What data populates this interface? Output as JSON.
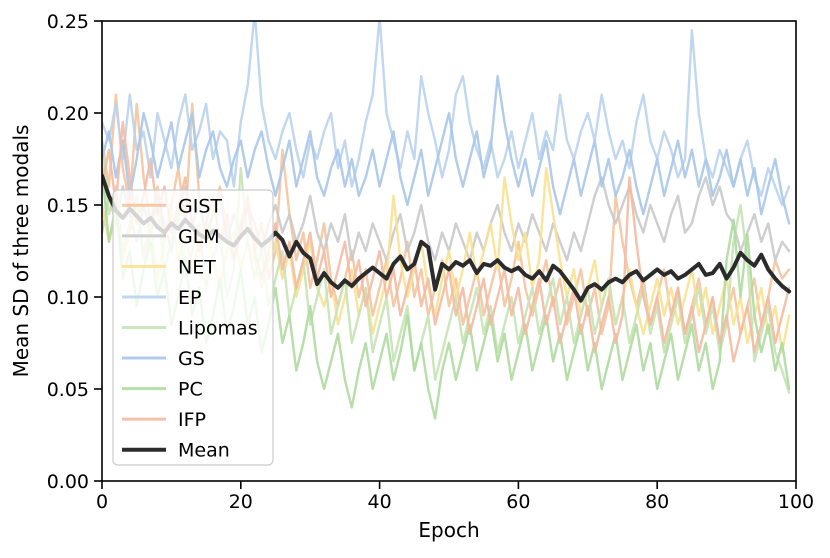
{
  "chart_data": {
    "type": "line",
    "title": "",
    "xlabel": "Epoch",
    "ylabel": "Mean SD of three modals",
    "xlim": [
      0,
      100
    ],
    "ylim": [
      0,
      0.25
    ],
    "xticks": [
      0,
      20,
      40,
      60,
      80,
      100
    ],
    "yticks": [
      0.0,
      0.05,
      0.1,
      0.15,
      0.2,
      0.25
    ],
    "grid": false,
    "legend_position": "center left",
    "axes_color": "#000000",
    "legend_border_color": "#cccccc",
    "x_start": 0,
    "x_step": 1,
    "n_points": 100,
    "series": [
      {
        "name": "GIST",
        "color": "#f6c39c",
        "opacity": 0.9,
        "line_width": 2.4,
        "values": [
          0.185,
          0.16,
          0.21,
          0.17,
          0.15,
          0.205,
          0.165,
          0.14,
          0.16,
          0.13,
          0.15,
          0.17,
          0.14,
          0.205,
          0.155,
          0.13,
          0.145,
          0.16,
          0.135,
          0.12,
          0.14,
          0.155,
          0.125,
          0.14,
          0.11,
          0.125,
          0.18,
          0.145,
          0.12,
          0.135,
          0.105,
          0.12,
          0.14,
          0.11,
          0.095,
          0.11,
          0.125,
          0.1,
          0.115,
          0.09,
          0.105,
          0.12,
          0.095,
          0.11,
          0.13,
          0.1,
          0.115,
          0.09,
          0.105,
          0.12,
          0.095,
          0.11,
          0.085,
          0.1,
          0.115,
          0.09,
          0.105,
          0.12,
          0.095,
          0.11,
          0.13,
          0.105,
          0.09,
          0.105,
          0.12,
          0.095,
          0.11,
          0.085,
          0.1,
          0.115,
          0.09,
          0.105,
          0.08,
          0.095,
          0.155,
          0.13,
          0.11,
          0.095,
          0.11,
          0.085,
          0.1,
          0.115,
          0.09,
          0.105,
          0.08,
          0.095,
          0.11,
          0.085,
          0.1,
          0.075,
          0.09,
          0.105,
          0.08,
          0.095,
          0.11,
          0.085,
          0.1,
          0.12,
          0.11,
          0.115
        ]
      },
      {
        "name": "GLM",
        "color": "#c9c9c9",
        "opacity": 0.9,
        "line_width": 2.4,
        "values": [
          0.135,
          0.155,
          0.14,
          0.16,
          0.145,
          0.13,
          0.15,
          0.135,
          0.155,
          0.14,
          0.125,
          0.145,
          0.16,
          0.14,
          0.15,
          0.135,
          0.145,
          0.155,
          0.13,
          0.145,
          0.135,
          0.15,
          0.14,
          0.125,
          0.14,
          0.15,
          0.135,
          0.145,
          0.13,
          0.14,
          0.155,
          0.135,
          0.125,
          0.14,
          0.13,
          0.145,
          0.12,
          0.135,
          0.125,
          0.14,
          0.13,
          0.12,
          0.135,
          0.145,
          0.125,
          0.135,
          0.15,
          0.13,
          0.12,
          0.135,
          0.125,
          0.14,
          0.13,
          0.12,
          0.135,
          0.125,
          0.14,
          0.15,
          0.135,
          0.125,
          0.14,
          0.13,
          0.145,
          0.135,
          0.125,
          0.14,
          0.13,
          0.12,
          0.135,
          0.125,
          0.14,
          0.155,
          0.165,
          0.15,
          0.14,
          0.15,
          0.16,
          0.145,
          0.135,
          0.15,
          0.14,
          0.13,
          0.145,
          0.155,
          0.135,
          0.14,
          0.155,
          0.165,
          0.15,
          0.16,
          0.145,
          0.14,
          0.125,
          0.135,
          0.145,
          0.13,
          0.14,
          0.12,
          0.13,
          0.125
        ]
      },
      {
        "name": "NET",
        "color": "#fae191",
        "opacity": 0.9,
        "line_width": 2.4,
        "values": [
          0.15,
          0.13,
          0.145,
          0.12,
          0.135,
          0.15,
          0.125,
          0.14,
          0.11,
          0.13,
          0.145,
          0.12,
          0.135,
          0.115,
          0.13,
          0.14,
          0.12,
          0.105,
          0.125,
          0.135,
          0.115,
          0.13,
          0.12,
          0.105,
          0.12,
          0.13,
          0.11,
          0.125,
          0.1,
          0.115,
          0.13,
          0.105,
          0.095,
          0.11,
          0.085,
          0.1,
          0.115,
          0.09,
          0.105,
          0.08,
          0.095,
          0.11,
          0.155,
          0.12,
          0.1,
          0.115,
          0.13,
          0.105,
          0.09,
          0.11,
          0.125,
          0.1,
          0.115,
          0.135,
          0.11,
          0.125,
          0.14,
          0.115,
          0.165,
          0.14,
          0.12,
          0.135,
          0.105,
          0.12,
          0.17,
          0.145,
          0.12,
          0.1,
          0.115,
          0.09,
          0.105,
          0.12,
          0.095,
          0.11,
          0.085,
          0.1,
          0.115,
          0.095,
          0.08,
          0.095,
          0.11,
          0.09,
          0.105,
          0.085,
          0.1,
          0.115,
          0.09,
          0.105,
          0.08,
          0.095,
          0.11,
          0.085,
          0.1,
          0.075,
          0.09,
          0.105,
          0.08,
          0.095,
          0.07,
          0.09
        ]
      },
      {
        "name": "EP",
        "color": "#bad3ee",
        "opacity": 0.9,
        "line_width": 2.4,
        "values": [
          0.195,
          0.185,
          0.205,
          0.175,
          0.21,
          0.18,
          0.19,
          0.165,
          0.2,
          0.185,
          0.17,
          0.195,
          0.21,
          0.18,
          0.19,
          0.205,
          0.175,
          0.19,
          0.185,
          0.16,
          0.195,
          0.215,
          0.255,
          0.205,
          0.185,
          0.175,
          0.19,
          0.2,
          0.18,
          0.165,
          0.185,
          0.175,
          0.19,
          0.2,
          0.17,
          0.185,
          0.16,
          0.175,
          0.195,
          0.21,
          0.252,
          0.2,
          0.185,
          0.17,
          0.19,
          0.175,
          0.22,
          0.2,
          0.185,
          0.165,
          0.18,
          0.21,
          0.22,
          0.195,
          0.18,
          0.17,
          0.185,
          0.165,
          0.175,
          0.19,
          0.17,
          0.185,
          0.2,
          0.175,
          0.19,
          0.18,
          0.21,
          0.185,
          0.175,
          0.19,
          0.2,
          0.185,
          0.21,
          0.19,
          0.175,
          0.185,
          0.17,
          0.195,
          0.21,
          0.185,
          0.175,
          0.19,
          0.18,
          0.165,
          0.175,
          0.245,
          0.2,
          0.175,
          0.165,
          0.18,
          0.17,
          0.16,
          0.175,
          0.185,
          0.165,
          0.155,
          0.17,
          0.16,
          0.15,
          0.16
        ]
      },
      {
        "name": "Lipomas",
        "color": "#c6e3b5",
        "opacity": 0.9,
        "line_width": 2.4,
        "values": [
          0.185,
          0.145,
          0.16,
          0.125,
          0.14,
          0.155,
          0.12,
          0.135,
          0.15,
          0.115,
          0.13,
          0.145,
          0.11,
          0.125,
          0.14,
          0.105,
          0.12,
          0.135,
          0.1,
          0.115,
          0.17,
          0.13,
          0.11,
          0.125,
          0.095,
          0.11,
          0.125,
          0.09,
          0.105,
          0.12,
          0.085,
          0.1,
          0.115,
          0.08,
          0.095,
          0.11,
          0.075,
          0.09,
          0.105,
          0.07,
          0.085,
          0.1,
          0.065,
          0.08,
          0.095,
          0.06,
          0.075,
          0.09,
          0.055,
          0.07,
          0.085,
          0.1,
          0.075,
          0.09,
          0.105,
          0.08,
          0.095,
          0.07,
          0.085,
          0.1,
          0.075,
          0.09,
          0.105,
          0.08,
          0.095,
          0.11,
          0.085,
          0.1,
          0.075,
          0.09,
          0.105,
          0.08,
          0.095,
          0.11,
          0.085,
          0.1,
          0.075,
          0.09,
          0.105,
          0.08,
          0.095,
          0.07,
          0.085,
          0.1,
          0.075,
          0.09,
          0.105,
          0.08,
          0.095,
          0.07,
          0.085,
          0.13,
          0.15,
          0.12,
          0.065,
          0.08,
          0.095,
          0.07,
          0.06,
          0.048
        ]
      },
      {
        "name": "GS",
        "color": "#a9c7e9",
        "opacity": 0.9,
        "line_width": 2.4,
        "values": [
          0.175,
          0.19,
          0.165,
          0.185,
          0.155,
          0.175,
          0.2,
          0.185,
          0.165,
          0.18,
          0.195,
          0.17,
          0.185,
          0.2,
          0.165,
          0.18,
          0.19,
          0.17,
          0.16,
          0.175,
          0.185,
          0.165,
          0.18,
          0.19,
          0.17,
          0.155,
          0.17,
          0.185,
          0.16,
          0.175,
          0.19,
          0.165,
          0.155,
          0.17,
          0.18,
          0.16,
          0.175,
          0.155,
          0.165,
          0.18,
          0.16,
          0.175,
          0.19,
          0.165,
          0.15,
          0.165,
          0.18,
          0.155,
          0.17,
          0.185,
          0.2,
          0.175,
          0.16,
          0.175,
          0.19,
          0.165,
          0.18,
          0.22,
          0.195,
          0.175,
          0.16,
          0.175,
          0.155,
          0.17,
          0.185,
          0.16,
          0.145,
          0.16,
          0.175,
          0.155,
          0.17,
          0.185,
          0.16,
          0.175,
          0.155,
          0.165,
          0.18,
          0.16,
          0.145,
          0.16,
          0.175,
          0.155,
          0.17,
          0.185,
          0.165,
          0.18,
          0.16,
          0.175,
          0.155,
          0.165,
          0.18,
          0.16,
          0.175,
          0.155,
          0.17,
          0.145,
          0.16,
          0.175,
          0.155,
          0.14
        ]
      },
      {
        "name": "PC",
        "color": "#aeda9e",
        "opacity": 0.9,
        "line_width": 2.4,
        "values": [
          0.17,
          0.13,
          0.15,
          0.11,
          0.125,
          0.095,
          0.115,
          0.13,
          0.1,
          0.115,
          0.085,
          0.1,
          0.12,
          0.09,
          0.105,
          0.075,
          0.09,
          0.11,
          0.08,
          0.095,
          0.115,
          0.085,
          0.1,
          0.07,
          0.085,
          0.105,
          0.075,
          0.09,
          0.06,
          0.075,
          0.095,
          0.065,
          0.05,
          0.065,
          0.08,
          0.055,
          0.04,
          0.06,
          0.075,
          0.05,
          0.065,
          0.08,
          0.055,
          0.07,
          0.09,
          0.06,
          0.075,
          0.05,
          0.034,
          0.06,
          0.075,
          0.055,
          0.07,
          0.085,
          0.06,
          0.075,
          0.09,
          0.065,
          0.08,
          0.055,
          0.07,
          0.085,
          0.06,
          0.075,
          0.09,
          0.065,
          0.08,
          0.055,
          0.07,
          0.085,
          0.06,
          0.075,
          0.05,
          0.065,
          0.08,
          0.055,
          0.07,
          0.085,
          0.06,
          0.075,
          0.05,
          0.065,
          0.08,
          0.055,
          0.07,
          0.085,
          0.06,
          0.075,
          0.05,
          0.065,
          0.12,
          0.142,
          0.1,
          0.134,
          0.09,
          0.07,
          0.085,
          0.06,
          0.075,
          0.05
        ]
      },
      {
        "name": "IFP",
        "color": "#f4baa2",
        "opacity": 0.9,
        "line_width": 2.4,
        "values": [
          0.16,
          0.18,
          0.15,
          0.195,
          0.165,
          0.14,
          0.155,
          0.175,
          0.145,
          0.16,
          0.135,
          0.15,
          0.165,
          0.14,
          0.125,
          0.14,
          0.155,
          0.13,
          0.145,
          0.12,
          0.135,
          0.15,
          0.125,
          0.11,
          0.125,
          0.14,
          0.115,
          0.13,
          0.105,
          0.12,
          0.135,
          0.11,
          0.125,
          0.1,
          0.115,
          0.13,
          0.105,
          0.12,
          0.095,
          0.11,
          0.125,
          0.1,
          0.115,
          0.09,
          0.105,
          0.12,
          0.095,
          0.11,
          0.085,
          0.1,
          0.115,
          0.09,
          0.105,
          0.08,
          0.095,
          0.11,
          0.085,
          0.1,
          0.115,
          0.09,
          0.105,
          0.08,
          0.095,
          0.11,
          0.085,
          0.1,
          0.075,
          0.09,
          0.105,
          0.08,
          0.095,
          0.07,
          0.085,
          0.1,
          0.075,
          0.09,
          0.165,
          0.13,
          0.1,
          0.085,
          0.1,
          0.075,
          0.09,
          0.105,
          0.08,
          0.095,
          0.07,
          0.085,
          0.1,
          0.075,
          0.09,
          0.065,
          0.08,
          0.095,
          0.07,
          0.085,
          0.1,
          0.075,
          0.09,
          0.105
        ]
      },
      {
        "name": "Mean",
        "color": "#2b2b2b",
        "opacity": 1,
        "line_width": 4,
        "values": [
          0.166,
          0.155,
          0.147,
          0.143,
          0.148,
          0.144,
          0.14,
          0.143,
          0.138,
          0.135,
          0.14,
          0.137,
          0.142,
          0.138,
          0.134,
          0.132,
          0.136,
          0.133,
          0.13,
          0.128,
          0.133,
          0.137,
          0.132,
          0.128,
          0.131,
          0.135,
          0.131,
          0.122,
          0.13,
          0.124,
          0.121,
          0.107,
          0.113,
          0.108,
          0.105,
          0.109,
          0.106,
          0.11,
          0.113,
          0.116,
          0.113,
          0.11,
          0.118,
          0.122,
          0.115,
          0.118,
          0.13,
          0.127,
          0.104,
          0.118,
          0.115,
          0.119,
          0.117,
          0.12,
          0.113,
          0.118,
          0.117,
          0.12,
          0.116,
          0.114,
          0.116,
          0.112,
          0.11,
          0.114,
          0.109,
          0.117,
          0.114,
          0.109,
          0.104,
          0.098,
          0.105,
          0.107,
          0.104,
          0.108,
          0.11,
          0.108,
          0.112,
          0.114,
          0.109,
          0.112,
          0.115,
          0.112,
          0.114,
          0.11,
          0.112,
          0.115,
          0.118,
          0.112,
          0.113,
          0.118,
          0.11,
          0.116,
          0.124,
          0.12,
          0.117,
          0.123,
          0.115,
          0.11,
          0.106,
          0.103
        ]
      }
    ]
  }
}
